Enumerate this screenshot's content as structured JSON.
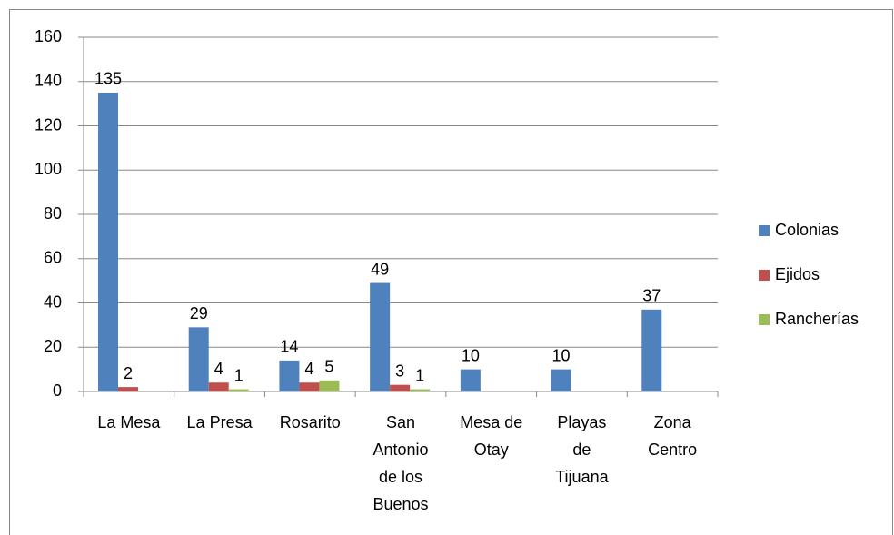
{
  "chart_data": {
    "type": "bar",
    "categories": [
      "La Mesa",
      "La Presa",
      "Rosarito",
      "San Antonio de los Buenos",
      "Mesa de Otay",
      "Playas de Tijuana",
      "Zona Centro"
    ],
    "series": [
      {
        "name": "Colonias",
        "color": "#4f81bd",
        "values": [
          135,
          29,
          14,
          49,
          10,
          10,
          37
        ]
      },
      {
        "name": "Ejidos",
        "color": "#c0504d",
        "values": [
          2,
          4,
          4,
          3,
          null,
          null,
          null
        ]
      },
      {
        "name": "Rancherías",
        "color": "#9bbb59",
        "values": [
          null,
          1,
          5,
          1,
          null,
          null,
          null
        ]
      }
    ],
    "ylim": [
      0,
      160
    ],
    "yticks": [
      0,
      20,
      40,
      60,
      80,
      100,
      120,
      140,
      160
    ],
    "grid": true,
    "legend": "right"
  }
}
